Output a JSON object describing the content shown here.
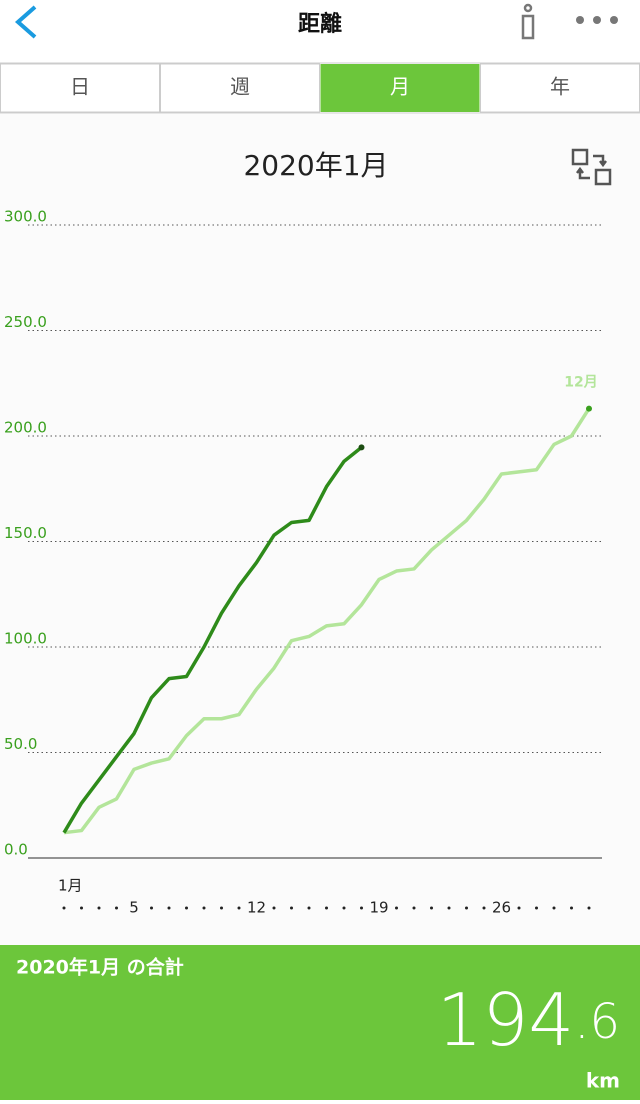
{
  "header": {
    "title": "距離"
  },
  "tabs": {
    "items": [
      "日",
      "週",
      "月",
      "年"
    ],
    "active": "月"
  },
  "chart_data": {
    "type": "line",
    "title": "2020年1月",
    "x": [
      1,
      2,
      3,
      4,
      5,
      6,
      7,
      8,
      9,
      10,
      11,
      12,
      13,
      14,
      15,
      16,
      17,
      18,
      19,
      20,
      21,
      22,
      23,
      24,
      25,
      26,
      27,
      28,
      29,
      30,
      31
    ],
    "xlim": [
      1,
      31
    ],
    "xticks": [
      {
        "value": 1,
        "label": "1月"
      },
      5,
      12,
      19,
      26
    ],
    "ylim": [
      0,
      300
    ],
    "yticks": [
      {
        "value": 0,
        "label": "0.0"
      },
      {
        "value": 50,
        "label": "50.0"
      },
      {
        "value": 100,
        "label": "100.0"
      },
      {
        "value": 150,
        "label": "150.0"
      },
      {
        "value": 200,
        "label": "200.0"
      },
      {
        "value": 250,
        "label": "250.0"
      },
      {
        "value": 300,
        "label": "300.0"
      }
    ],
    "grid": true,
    "series": [
      {
        "name": "12月",
        "color": "#b3e59a",
        "values": [
          12,
          13,
          24,
          28,
          42,
          45,
          47,
          58,
          66,
          66,
          68,
          80,
          90,
          103,
          105,
          110,
          111,
          120,
          132,
          136,
          137,
          146,
          153,
          160,
          170,
          182,
          183,
          184,
          196,
          200,
          213
        ]
      },
      {
        "color": "#2e8b1a",
        "values": [
          12,
          26,
          37,
          48,
          59,
          76,
          85,
          86,
          100,
          116,
          129,
          140,
          153,
          159,
          160,
          176,
          188,
          194.6,
          null,
          null,
          null,
          null,
          null,
          null,
          null,
          null,
          null,
          null,
          null,
          null,
          null
        ]
      }
    ]
  },
  "footer": {
    "label": "2020年1月 の合計",
    "total": "194.6",
    "unit": "km"
  }
}
